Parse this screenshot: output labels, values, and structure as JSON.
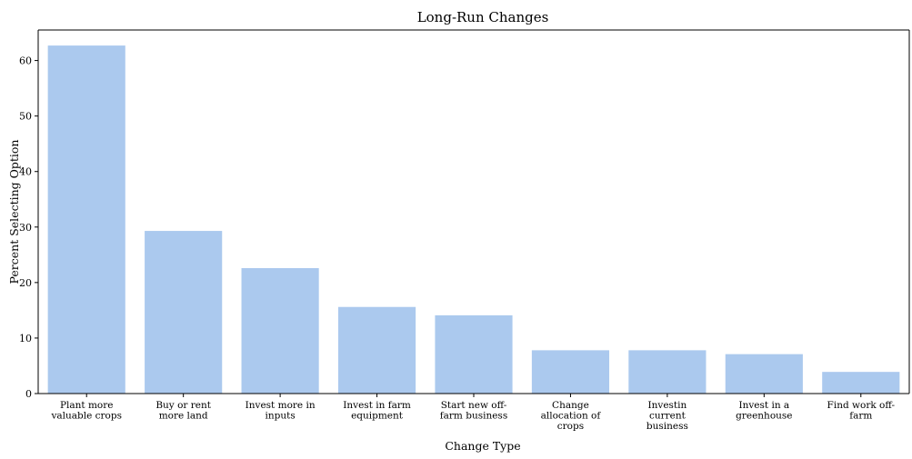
{
  "chart_data": {
    "type": "bar",
    "title": "Long-Run Changes",
    "xlabel": "Change Type",
    "ylabel": "Percent Selecting Option",
    "categories": [
      [
        "Plant more",
        "valuable crops"
      ],
      [
        "Buy or rent",
        "more land"
      ],
      [
        "Invest more in",
        "inputs"
      ],
      [
        "Invest in farm",
        "equipment"
      ],
      [
        "Start new off-",
        "farm business"
      ],
      [
        "Change",
        "allocation of",
        "crops"
      ],
      [
        "Investin",
        "current",
        "business"
      ],
      [
        "Invest in a",
        "greenhouse"
      ],
      [
        "Find work off-",
        "farm"
      ]
    ],
    "values": [
      62.7,
      29.3,
      22.6,
      15.6,
      14.1,
      7.8,
      7.8,
      7.1,
      3.9
    ],
    "ylim": [
      0,
      65.5
    ],
    "yticks": [
      0,
      10,
      20,
      30,
      40,
      50,
      60
    ],
    "grid": false,
    "bar_color": "#abc9ee",
    "axis_color": "#000000"
  }
}
